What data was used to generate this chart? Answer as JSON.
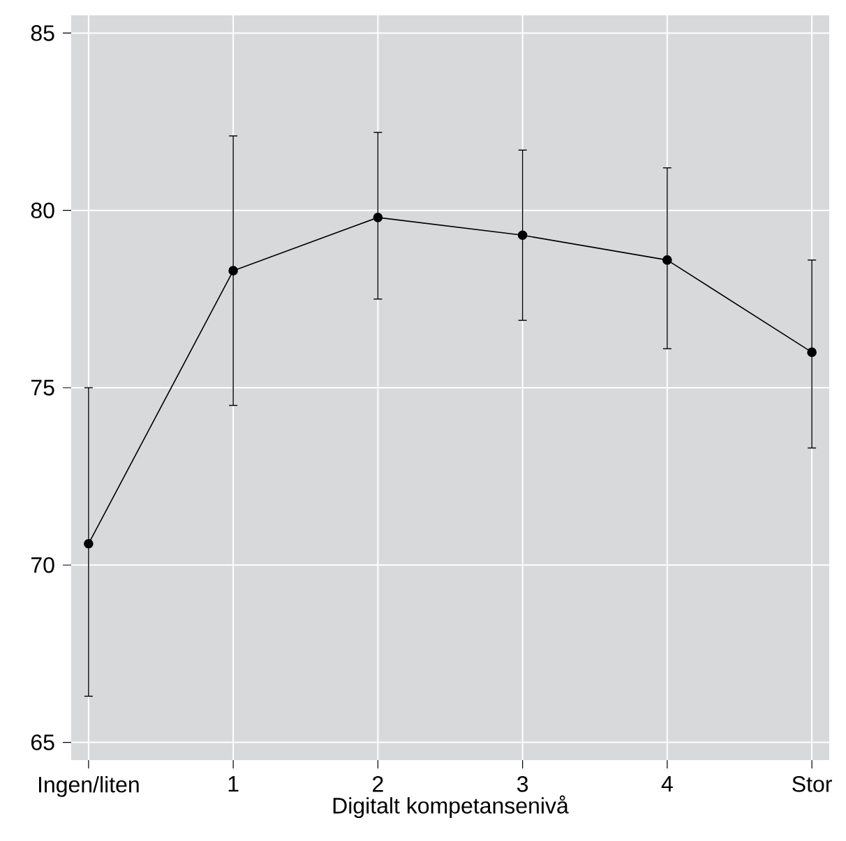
{
  "chart_data": {
    "type": "line",
    "xlabel": "Digitalt kompetansenivå",
    "categories": [
      "Ingen/liten",
      "1",
      "2",
      "3",
      "4",
      "Stor"
    ],
    "series": [
      {
        "color": "#000000",
        "values": [
          70.6,
          78.3,
          79.8,
          79.3,
          78.6,
          76.0
        ],
        "errors": [
          [
            66.3,
            75.0
          ],
          [
            74.5,
            82.1
          ],
          [
            77.5,
            82.2
          ],
          [
            76.9,
            81.7
          ],
          [
            76.1,
            81.2
          ],
          [
            73.3,
            78.6
          ]
        ]
      }
    ],
    "ylim": [
      64.5,
      85.5
    ],
    "yticks": [
      65,
      70,
      75,
      80,
      85
    ],
    "grid": true,
    "marker": "circle",
    "line_style": "solid"
  }
}
